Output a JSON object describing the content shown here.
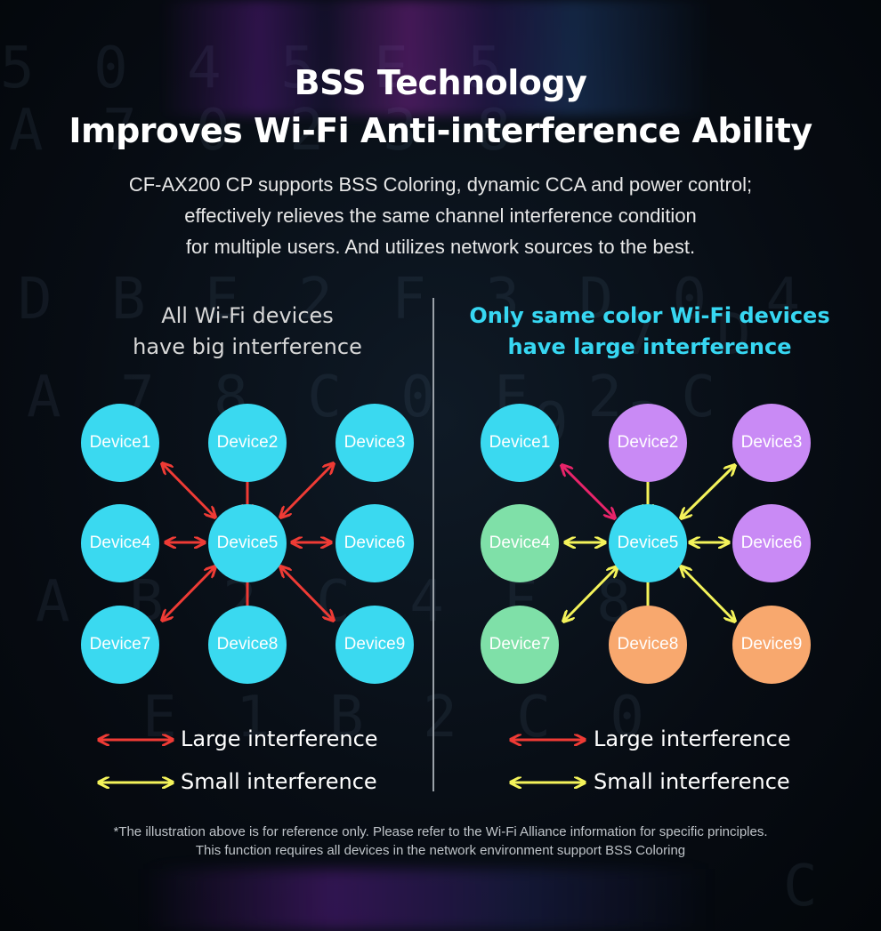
{
  "header": {
    "title_line1": "BSS Technology",
    "title_line2": "Improves Wi-Fi Anti-interference Ability",
    "subtitle_line1": "CF-AX200 CP supports BSS Coloring, dynamic CCA and power control;",
    "subtitle_line2": "effectively relieves the same channel interference condition",
    "subtitle_line3": "for multiple users. And utilizes network sources to the best."
  },
  "left_panel": {
    "heading_line1": "All Wi-Fi devices",
    "heading_line2": "have big interference",
    "devices": [
      {
        "label": "Device1",
        "color": "#3ad9f0"
      },
      {
        "label": "Device2",
        "color": "#3ad9f0"
      },
      {
        "label": "Device3",
        "color": "#3ad9f0"
      },
      {
        "label": "Device4",
        "color": "#3ad9f0"
      },
      {
        "label": "Device5",
        "color": "#3ad9f0"
      },
      {
        "label": "Device6",
        "color": "#3ad9f0"
      },
      {
        "label": "Device7",
        "color": "#3ad9f0"
      },
      {
        "label": "Device8",
        "color": "#3ad9f0"
      },
      {
        "label": "Device9",
        "color": "#3ad9f0"
      }
    ]
  },
  "right_panel": {
    "heading_line1": "Only same color Wi-Fi devices",
    "heading_line2": "have large interference",
    "devices": [
      {
        "label": "Device1",
        "color": "#3ad9f0"
      },
      {
        "label": "Device2",
        "color": "#c98af5"
      },
      {
        "label": "Device3",
        "color": "#c98af5"
      },
      {
        "label": "Device4",
        "color": "#7fe0a8"
      },
      {
        "label": "Device5",
        "color": "#3ad9f0"
      },
      {
        "label": "Device6",
        "color": "#c98af5"
      },
      {
        "label": "Device7",
        "color": "#7fe0a8"
      },
      {
        "label": "Device8",
        "color": "#f8a86e"
      },
      {
        "label": "Device9",
        "color": "#f8a86e"
      }
    ]
  },
  "legend": {
    "large_label": "Large interference",
    "small_label": "Small interference",
    "large_color": "#ef3b35",
    "small_color": "#f4f35a"
  },
  "footnote": {
    "line1": "*The illustration above is for reference only. Please refer to the Wi-Fi Alliance information for specific principles.",
    "line2": "This function requires all devices in the network environment support BSS Coloring"
  }
}
